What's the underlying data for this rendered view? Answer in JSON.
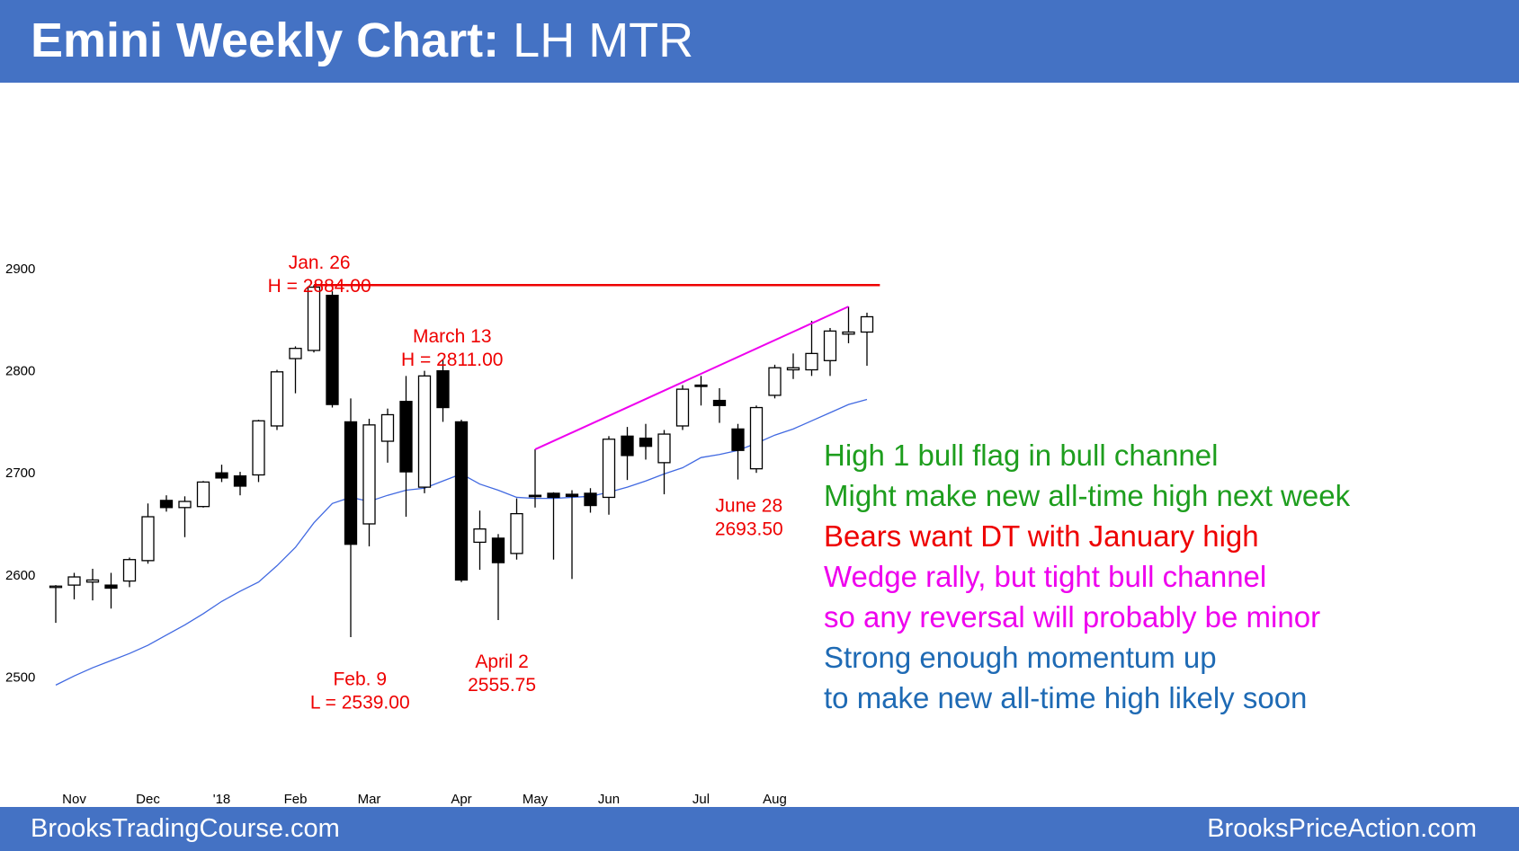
{
  "header": {
    "title_bold": "Emini Weekly Chart:",
    "title_rest": " LH MTR"
  },
  "footer": {
    "left": "BrooksTradingCourse.com",
    "right": "BrooksPriceAction.com"
  },
  "commentary": [
    {
      "text": "High 1 bull flag in bull channel",
      "color": "#1e9e1e"
    },
    {
      "text": "Might make new all-time high next week",
      "color": "#1e9e1e"
    },
    {
      "text": "Bears want DT with January high",
      "color": "#ee0000"
    },
    {
      "text": "Wedge rally, but tight bull channel",
      "color": "#ee00ee"
    },
    {
      "text": "so any reversal will probably be minor",
      "color": "#ee00ee"
    },
    {
      "text": "Strong enough momentum up",
      "color": "#1e6ab4"
    },
    {
      "text": "to make new all-time high likely soon",
      "color": "#1e6ab4"
    }
  ],
  "chart_data": {
    "type": "candlestick",
    "title": "",
    "ylim": [
      2480,
      2960
    ],
    "y_ticks": [
      2500,
      2600,
      2700,
      2800,
      2900
    ],
    "x_ticks": [
      {
        "label": "Nov",
        "bar": 1
      },
      {
        "label": "Dec",
        "bar": 5
      },
      {
        "label": "'18",
        "bar": 9
      },
      {
        "label": "Feb",
        "bar": 13
      },
      {
        "label": "Mar",
        "bar": 17
      },
      {
        "label": "Apr",
        "bar": 22
      },
      {
        "label": "May",
        "bar": 26
      },
      {
        "label": "Jun",
        "bar": 30
      },
      {
        "label": "Jul",
        "bar": 35
      },
      {
        "label": "Aug",
        "bar": 39
      }
    ],
    "colors": {
      "bull": "#ffffff",
      "bear": "#000000",
      "outline": "#000000",
      "ema": "#4169e1",
      "resistance": "#ee0000",
      "wedge": "#ee00ee",
      "label": "#ee0000"
    },
    "candles": [
      {
        "o": 2589,
        "h": 2590,
        "l": 2553,
        "c": 2589
      },
      {
        "o": 2590,
        "h": 2602,
        "l": 2576,
        "c": 2598
      },
      {
        "o": 2593,
        "h": 2606,
        "l": 2575,
        "c": 2595
      },
      {
        "o": 2590,
        "h": 2602,
        "l": 2567,
        "c": 2587
      },
      {
        "o": 2594,
        "h": 2617,
        "l": 2588,
        "c": 2615
      },
      {
        "o": 2614,
        "h": 2670,
        "l": 2611,
        "c": 2657
      },
      {
        "o": 2673,
        "h": 2678,
        "l": 2662,
        "c": 2666
      },
      {
        "o": 2666,
        "h": 2677,
        "l": 2637,
        "c": 2672
      },
      {
        "o": 2667,
        "h": 2692,
        "l": 2666,
        "c": 2691
      },
      {
        "o": 2700,
        "h": 2708,
        "l": 2691,
        "c": 2695
      },
      {
        "o": 2697,
        "h": 2701,
        "l": 2678,
        "c": 2687
      },
      {
        "o": 2698,
        "h": 2752,
        "l": 2691,
        "c": 2751
      },
      {
        "o": 2746,
        "h": 2801,
        "l": 2742,
        "c": 2799
      },
      {
        "o": 2812,
        "h": 2824,
        "l": 2778,
        "c": 2822
      },
      {
        "o": 2820,
        "h": 2884,
        "l": 2818,
        "c": 2882
      },
      {
        "o": 2874,
        "h": 2878,
        "l": 2764,
        "c": 2767
      },
      {
        "o": 2750,
        "h": 2773,
        "l": 2539,
        "c": 2630
      },
      {
        "o": 2650,
        "h": 2753,
        "l": 2628,
        "c": 2747
      },
      {
        "o": 2731,
        "h": 2763,
        "l": 2710,
        "c": 2757
      },
      {
        "o": 2770,
        "h": 2795,
        "l": 2657,
        "c": 2701
      },
      {
        "o": 2686,
        "h": 2800,
        "l": 2680,
        "c": 2795
      },
      {
        "o": 2800,
        "h": 2811,
        "l": 2750,
        "c": 2764
      },
      {
        "o": 2750,
        "h": 2752,
        "l": 2593,
        "c": 2595
      },
      {
        "o": 2632,
        "h": 2663,
        "l": 2605,
        "c": 2645
      },
      {
        "o": 2636,
        "h": 2640,
        "l": 2555.75,
        "c": 2612
      },
      {
        "o": 2621,
        "h": 2675,
        "l": 2615,
        "c": 2660
      },
      {
        "o": 2678,
        "h": 2723,
        "l": 2666,
        "c": 2677
      },
      {
        "o": 2680,
        "h": 2681,
        "l": 2615,
        "c": 2676
      },
      {
        "o": 2679,
        "h": 2683,
        "l": 2596,
        "c": 2677
      },
      {
        "o": 2680,
        "h": 2685,
        "l": 2661,
        "c": 2668
      },
      {
        "o": 2676,
        "h": 2736,
        "l": 2659,
        "c": 2733
      },
      {
        "o": 2736,
        "h": 2745,
        "l": 2693,
        "c": 2717
      },
      {
        "o": 2734,
        "h": 2748,
        "l": 2713,
        "c": 2726
      },
      {
        "o": 2710,
        "h": 2742,
        "l": 2679,
        "c": 2738
      },
      {
        "o": 2746,
        "h": 2786,
        "l": 2742,
        "c": 2782
      },
      {
        "o": 2786,
        "h": 2795,
        "l": 2766,
        "c": 2785
      },
      {
        "o": 2771,
        "h": 2783,
        "l": 2749,
        "c": 2766
      },
      {
        "o": 2743,
        "h": 2748,
        "l": 2693.5,
        "c": 2722
      },
      {
        "o": 2704,
        "h": 2766,
        "l": 2700,
        "c": 2764
      },
      {
        "o": 2776,
        "h": 2806,
        "l": 2773,
        "c": 2803
      },
      {
        "o": 2801,
        "h": 2817,
        "l": 2792,
        "c": 2803
      },
      {
        "o": 2801,
        "h": 2849,
        "l": 2795,
        "c": 2817
      },
      {
        "o": 2810,
        "h": 2842,
        "l": 2795,
        "c": 2839
      },
      {
        "o": 2836,
        "h": 2863,
        "l": 2827,
        "c": 2838
      },
      {
        "o": 2838,
        "h": 2857,
        "l": 2805,
        "c": 2853
      }
    ],
    "ema20": [
      2492,
      2501,
      2509,
      2516,
      2523,
      2531,
      2541,
      2551,
      2562,
      2574,
      2584,
      2593,
      2609,
      2627,
      2651,
      2670,
      2676,
      2672,
      2678,
      2683,
      2685,
      2692,
      2699,
      2689,
      2683,
      2676,
      2675,
      2675,
      2676,
      2677,
      2681,
      2686,
      2692,
      2699,
      2705,
      2715,
      2718,
      2722,
      2729,
      2737,
      2743,
      2751,
      2759,
      2767,
      2772
    ],
    "resistance_line": {
      "value": 2884,
      "from_bar": 14,
      "to_bar": 44.7
    },
    "wedge_line": {
      "from": {
        "bar": 26,
        "value": 2723
      },
      "to": {
        "bar": 43,
        "value": 2863
      }
    },
    "annotations": [
      {
        "lines": [
          "Jan. 26",
          "H = 2884.00"
        ],
        "bar": 14.3,
        "value": 2900
      },
      {
        "lines": [
          "March 13",
          "H = 2811.00"
        ],
        "bar": 21.5,
        "value": 2828
      },
      {
        "lines": [
          "Feb. 9",
          "L = 2539.00"
        ],
        "bar": 16.5,
        "value": 2492
      },
      {
        "lines": [
          "April 2",
          "2555.75"
        ],
        "bar": 24.2,
        "value": 2509
      },
      {
        "lines": [
          "June 28",
          "2693.50"
        ],
        "bar": 37.6,
        "value": 2662
      }
    ]
  }
}
